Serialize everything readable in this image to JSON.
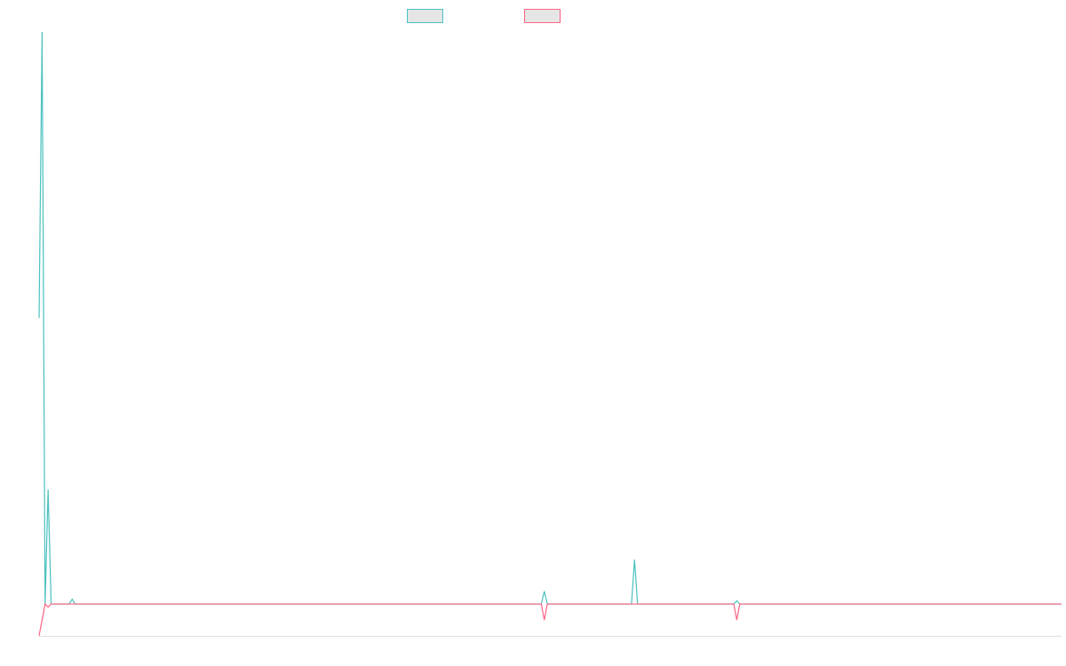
{
  "chart_data": {
    "type": "line",
    "x": [
      0,
      1,
      2,
      3,
      4,
      10,
      11,
      12,
      167,
      168,
      169,
      197,
      198,
      199,
      231,
      232,
      233,
      340
    ],
    "xlim": [
      0,
      340
    ],
    "ylim": [
      -1,
      18
    ],
    "grid": false,
    "legend": "top",
    "series": [
      {
        "color": "#4bc0c0",
        "values": [
          9,
          18,
          0,
          3.6,
          0,
          0,
          0.15,
          0,
          0,
          0.4,
          0,
          0,
          1.4,
          0,
          0,
          0.1,
          0,
          0
        ]
      },
      {
        "color": "#ff6384",
        "values": [
          -1,
          -0.5,
          0,
          -0.1,
          0,
          0,
          0,
          0,
          0,
          -0.5,
          0,
          0,
          0,
          0,
          0,
          -0.5,
          0,
          0
        ]
      }
    ]
  }
}
